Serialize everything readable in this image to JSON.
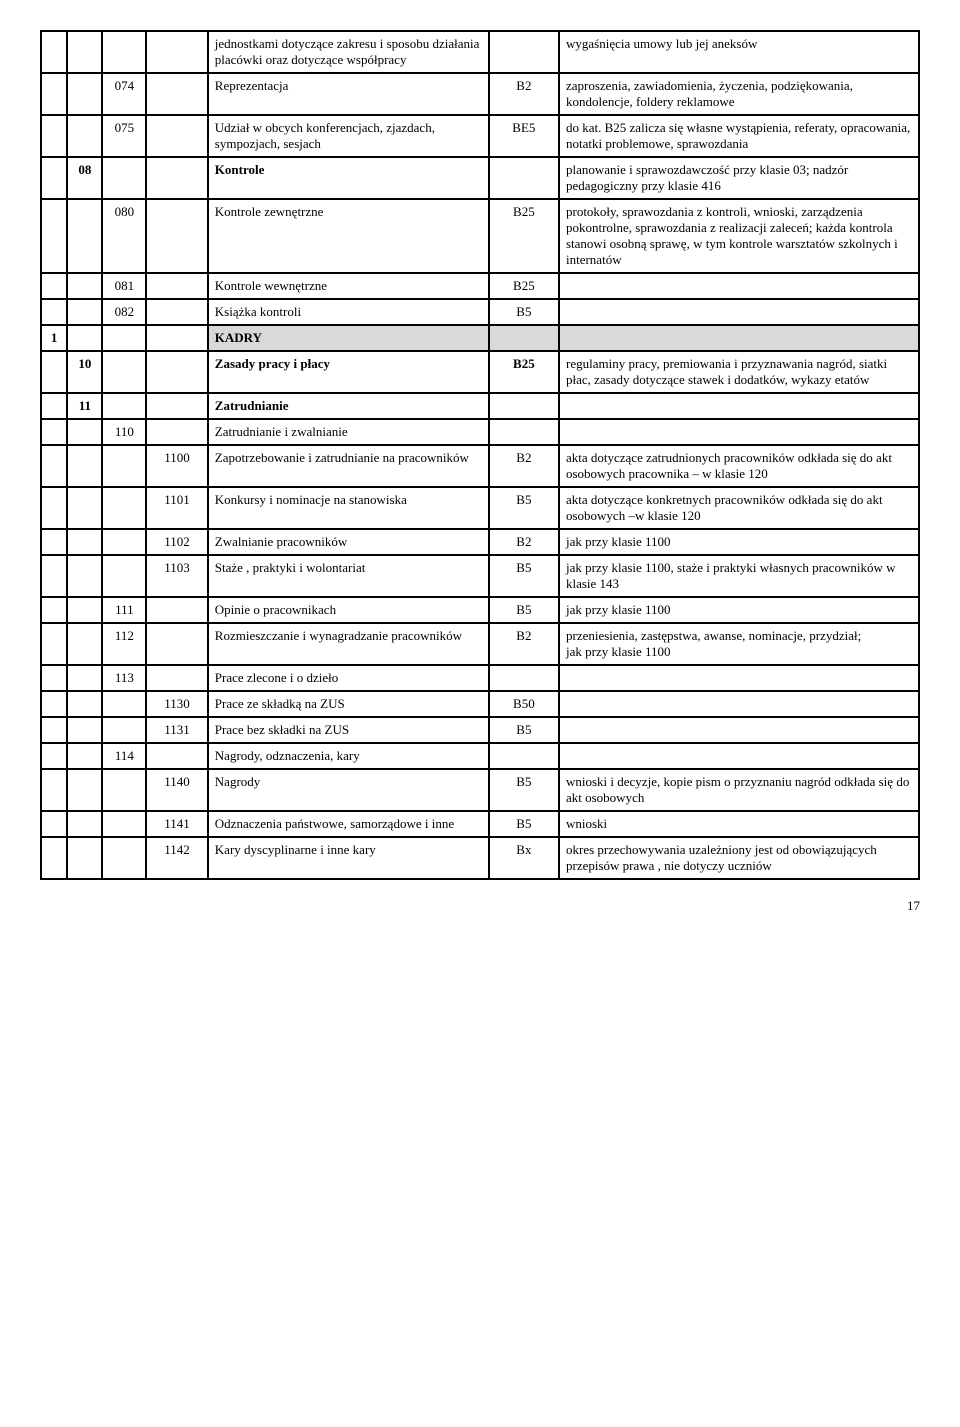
{
  "rows": [
    {
      "c1": "",
      "c2": "",
      "c3": "",
      "c4": "",
      "desc": "jednostkami dotyczące zakresu i sposobu działania placówki oraz dotyczące współpracy",
      "cat": "",
      "notes": "wygaśnięcia umowy lub jej aneksów"
    },
    {
      "c1": "",
      "c2": "",
      "c3": "074",
      "c4": "",
      "desc": "Reprezentacja",
      "cat": "B2",
      "notes": "zaproszenia, zawiadomienia, życzenia, podziękowania, kondolencje, foldery reklamowe"
    },
    {
      "c1": "",
      "c2": "",
      "c3": "075",
      "c4": "",
      "desc": "Udział w obcych konferencjach, zjazdach, sympozjach, sesjach",
      "cat": "BE5",
      "notes": "do kat. B25 zalicza się własne wystąpienia, referaty, opracowania, notatki problemowe, sprawozdania"
    },
    {
      "c1": "",
      "c2": "08",
      "c3": "",
      "c4": "",
      "desc": "Kontrole",
      "cat": "",
      "notes": "planowanie i sprawozdawczość przy klasie 03; nadzór pedagogiczny przy klasie 416",
      "bold": true
    },
    {
      "c1": "",
      "c2": "",
      "c3": "080",
      "c4": "",
      "desc": "Kontrole zewnętrzne",
      "cat": "B25",
      "notes": "protokoły, sprawozdania z kontroli, wnioski, zarządzenia pokontrolne, sprawozdania z realizacji zaleceń; każda kontrola stanowi osobną sprawę, w tym kontrole warsztatów szkolnych i internatów"
    },
    {
      "c1": "",
      "c2": "",
      "c3": "081",
      "c4": "",
      "desc": "Kontrole wewnętrzne",
      "cat": "B25",
      "notes": ""
    },
    {
      "c1": "",
      "c2": "",
      "c3": "082",
      "c4": "",
      "desc": "Książka kontroli",
      "cat": "B5",
      "notes": ""
    },
    {
      "c1": "1",
      "c2": "",
      "c3": "",
      "c4": "",
      "desc": "KADRY",
      "cat": "",
      "notes": "",
      "bold": true,
      "shaded": true
    },
    {
      "c1": "",
      "c2": "10",
      "c3": "",
      "c4": "",
      "desc": "Zasady pracy i płacy",
      "cat": "B25",
      "notes": "regulaminy pracy, premiowania i przyznawania nagród, siatki płac, zasady dotyczące stawek i dodatków, wykazy etatów",
      "bold": true
    },
    {
      "c1": "",
      "c2": "11",
      "c3": "",
      "c4": "",
      "desc": "Zatrudnianie",
      "cat": "",
      "notes": "",
      "bold": true
    },
    {
      "c1": "",
      "c2": "",
      "c3": "110",
      "c4": "",
      "desc": "Zatrudnianie i zwalnianie",
      "cat": "",
      "notes": ""
    },
    {
      "c1": "",
      "c2": "",
      "c3": "",
      "c4": "1100",
      "desc": "Zapotrzebowanie i zatrudnianie na pracowników",
      "cat": "B2",
      "notes": "akta dotyczące zatrudnionych pracowników odkłada się do akt osobowych pracownika – w  klasie 120"
    },
    {
      "c1": "",
      "c2": "",
      "c3": "",
      "c4": "1101",
      "desc": "Konkursy i nominacje na stanowiska",
      "cat": "B5",
      "notes": "akta dotyczące konkretnych pracowników odkłada się do akt osobowych –w klasie 120"
    },
    {
      "c1": "",
      "c2": "",
      "c3": "",
      "c4": "1102",
      "desc": "Zwalnianie pracowników",
      "cat": "B2",
      "notes": "jak przy klasie 1100"
    },
    {
      "c1": "",
      "c2": "",
      "c3": "",
      "c4": "1103",
      "desc": "Staże , praktyki i wolontariat",
      "cat": "B5",
      "notes": "jak przy klasie 1100, staże i praktyki własnych pracowników w klasie 143"
    },
    {
      "c1": "",
      "c2": "",
      "c3": "111",
      "c4": "",
      "desc": "Opinie o pracownikach",
      "cat": "B5",
      "notes": "jak przy klasie 1100"
    },
    {
      "c1": "",
      "c2": "",
      "c3": "112",
      "c4": "",
      "desc": "Rozmieszczanie i wynagradzanie pracowników",
      "cat": "B2",
      "notes": "przeniesienia, zastępstwa, awanse, nominacje, przydział;\njak przy klasie 1100"
    },
    {
      "c1": "",
      "c2": "",
      "c3": "113",
      "c4": "",
      "desc": "Prace zlecone i o dzieło",
      "cat": "",
      "notes": ""
    },
    {
      "c1": "",
      "c2": "",
      "c3": "",
      "c4": "1130",
      "desc": "Prace ze składką na ZUS",
      "cat": "B50",
      "notes": ""
    },
    {
      "c1": "",
      "c2": "",
      "c3": "",
      "c4": "1131",
      "desc": "Prace bez składki na ZUS",
      "cat": "B5",
      "notes": ""
    },
    {
      "c1": "",
      "c2": "",
      "c3": "114",
      "c4": "",
      "desc": "Nagrody, odznaczenia, kary",
      "cat": "",
      "notes": ""
    },
    {
      "c1": "",
      "c2": "",
      "c3": "",
      "c4": "1140",
      "desc": "Nagrody",
      "cat": "B5",
      "notes": "wnioski i decyzje, kopie pism o przyznaniu nagród odkłada się do akt osobowych"
    },
    {
      "c1": "",
      "c2": "",
      "c3": "",
      "c4": "1141",
      "desc": "Odznaczenia państwowe, samorządowe i inne",
      "cat": "B5",
      "notes": "wnioski"
    },
    {
      "c1": "",
      "c2": "",
      "c3": "",
      "c4": "1142",
      "desc": "Kary dyscyplinarne i inne kary",
      "cat": "Bx",
      "notes": "okres przechowywania uzależniony jest od obowiązujących przepisów prawa , nie dotyczy uczniów"
    }
  ],
  "pageNumber": "17"
}
